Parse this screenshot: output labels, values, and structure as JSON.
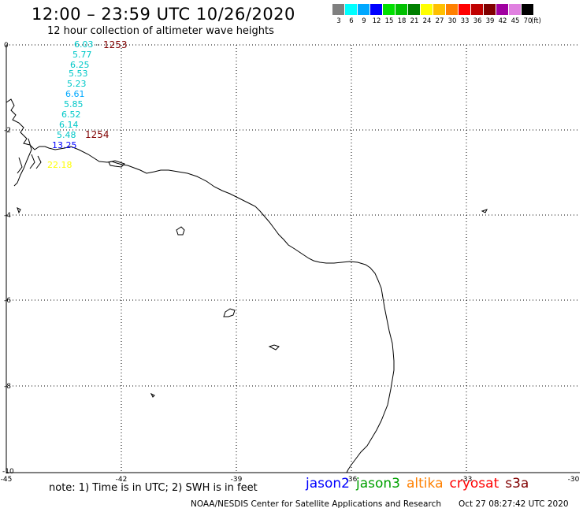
{
  "header": {
    "title": "12:00 – 23:59 UTC 10/26/2020",
    "subtitle": "12 hour collection of altimeter wave heights"
  },
  "legend": {
    "unit": "(ft)",
    "bins": [
      {
        "label": "3",
        "color": "#808080"
      },
      {
        "label": "6",
        "color": "#00ffff"
      },
      {
        "label": "9",
        "color": "#00a8ff"
      },
      {
        "label": "12",
        "color": "#0000ff"
      },
      {
        "label": "15",
        "color": "#00e000"
      },
      {
        "label": "18",
        "color": "#00c000"
      },
      {
        "label": "21",
        "color": "#008000"
      },
      {
        "label": "24",
        "color": "#ffff00"
      },
      {
        "label": "27",
        "color": "#ffc000"
      },
      {
        "label": "30",
        "color": "#ff8000"
      },
      {
        "label": "33",
        "color": "#ff0000"
      },
      {
        "label": "36",
        "color": "#c00000"
      },
      {
        "label": "39",
        "color": "#800000"
      },
      {
        "label": "42",
        "color": "#a000a0"
      },
      {
        "label": "45",
        "color": "#e080e0"
      },
      {
        "label": "70",
        "color": "#000000"
      }
    ]
  },
  "axes": {
    "x_ticks": [
      "-45",
      "-42",
      "-39",
      "-36",
      "-33",
      "-30"
    ],
    "y_ticks": [
      "0",
      "-2",
      "-4",
      "-6",
      "-8",
      "-10"
    ]
  },
  "observations": [
    {
      "value": "6.03",
      "color": "#00c8c8"
    },
    {
      "value": "5.77",
      "color": "#00c8c8"
    },
    {
      "value": "6.25",
      "color": "#00c8c8"
    },
    {
      "value": "5.53",
      "color": "#00c8c8"
    },
    {
      "value": "5.23",
      "color": "#00c8c8"
    },
    {
      "value": "6.61",
      "color": "#00a8ff"
    },
    {
      "value": "5.85",
      "color": "#00c8c8"
    },
    {
      "value": "6.52",
      "color": "#00c8c8"
    },
    {
      "value": "6.14",
      "color": "#00c8c8"
    },
    {
      "value": "5.48",
      "color": "#00c8c8"
    },
    {
      "value": "13.25",
      "color": "#0000ff"
    },
    {
      "value": "22.18",
      "color": "#ffff00"
    }
  ],
  "pass_times": [
    {
      "label": "1253",
      "color": "#800000"
    },
    {
      "label": "1254",
      "color": "#800000"
    }
  ],
  "note": "note:  1) Time is in UTC;  2) SWH is in feet",
  "satellites": [
    {
      "name": "jason2",
      "color": "#0000ff"
    },
    {
      "name": "jason3",
      "color": "#00a000"
    },
    {
      "name": "altika",
      "color": "#ff8000"
    },
    {
      "name": "cryosat",
      "color": "#ff0000"
    },
    {
      "name": "s3a",
      "color": "#800000"
    }
  ],
  "footer": {
    "source": "NOAA/NESDIS Center for Satellite Applications and Research",
    "timestamp": "Oct 27 08:27:42 UTC 2020"
  }
}
